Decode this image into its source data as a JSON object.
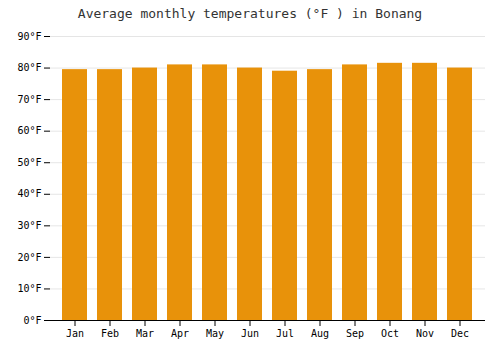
{
  "chart_data": {
    "type": "bar",
    "title": "Average monthly temperatures (°F ) in Bonang",
    "categories": [
      "Jan",
      "Feb",
      "Mar",
      "Apr",
      "May",
      "Jun",
      "Jul",
      "Aug",
      "Sep",
      "Oct",
      "Nov",
      "Dec"
    ],
    "values": [
      79.5,
      79.5,
      80.0,
      81.0,
      81.0,
      80.0,
      79.0,
      79.5,
      81.0,
      81.5,
      81.5,
      80.0
    ],
    "color": "#E8920A",
    "ylim": [
      0,
      90
    ],
    "yticks": [
      {
        "value": 0,
        "label": "0°F"
      },
      {
        "value": 10,
        "label": "10°F"
      },
      {
        "value": 20,
        "label": "20°F"
      },
      {
        "value": 30,
        "label": "30°F"
      },
      {
        "value": 40,
        "label": "40°F"
      },
      {
        "value": 50,
        "label": "50°F"
      },
      {
        "value": 60,
        "label": "60°F"
      },
      {
        "value": 70,
        "label": "70°F"
      },
      {
        "value": 80,
        "label": "80°F"
      },
      {
        "value": 90,
        "label": "90°F"
      }
    ],
    "grid": true
  }
}
